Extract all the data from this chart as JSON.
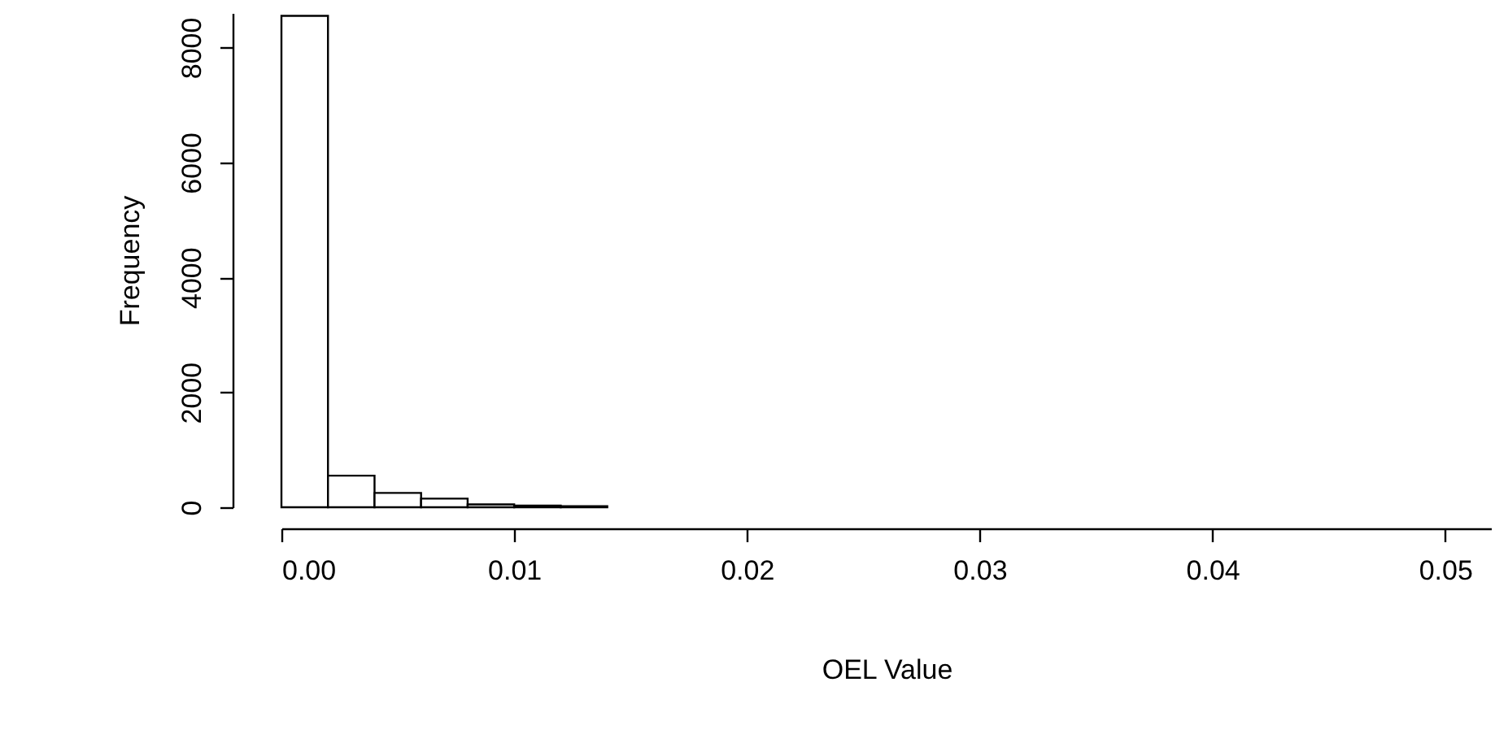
{
  "chart_data": {
    "type": "histogram",
    "xlabel": "OEL Value",
    "ylabel": "Frequency",
    "bins": [
      0,
      0.002,
      0.004,
      0.006,
      0.008,
      0.01,
      0.012,
      0.014
    ],
    "values": [
      8550,
      550,
      250,
      150,
      50,
      30,
      20
    ],
    "color": "#ffffff",
    "xlim": [
      0,
      0.052
    ],
    "xticks": [
      {
        "value": 0,
        "label": "0.00"
      },
      {
        "value": 0.01,
        "label": "0.01"
      },
      {
        "value": 0.02,
        "label": "0.02"
      },
      {
        "value": 0.03,
        "label": "0.03"
      },
      {
        "value": 0.04,
        "label": "0.04"
      },
      {
        "value": 0.05,
        "label": "0.05"
      }
    ],
    "ylim": [
      0,
      8600
    ],
    "yticks": [
      0,
      2000,
      4000,
      6000,
      8000
    ],
    "grid": false
  }
}
